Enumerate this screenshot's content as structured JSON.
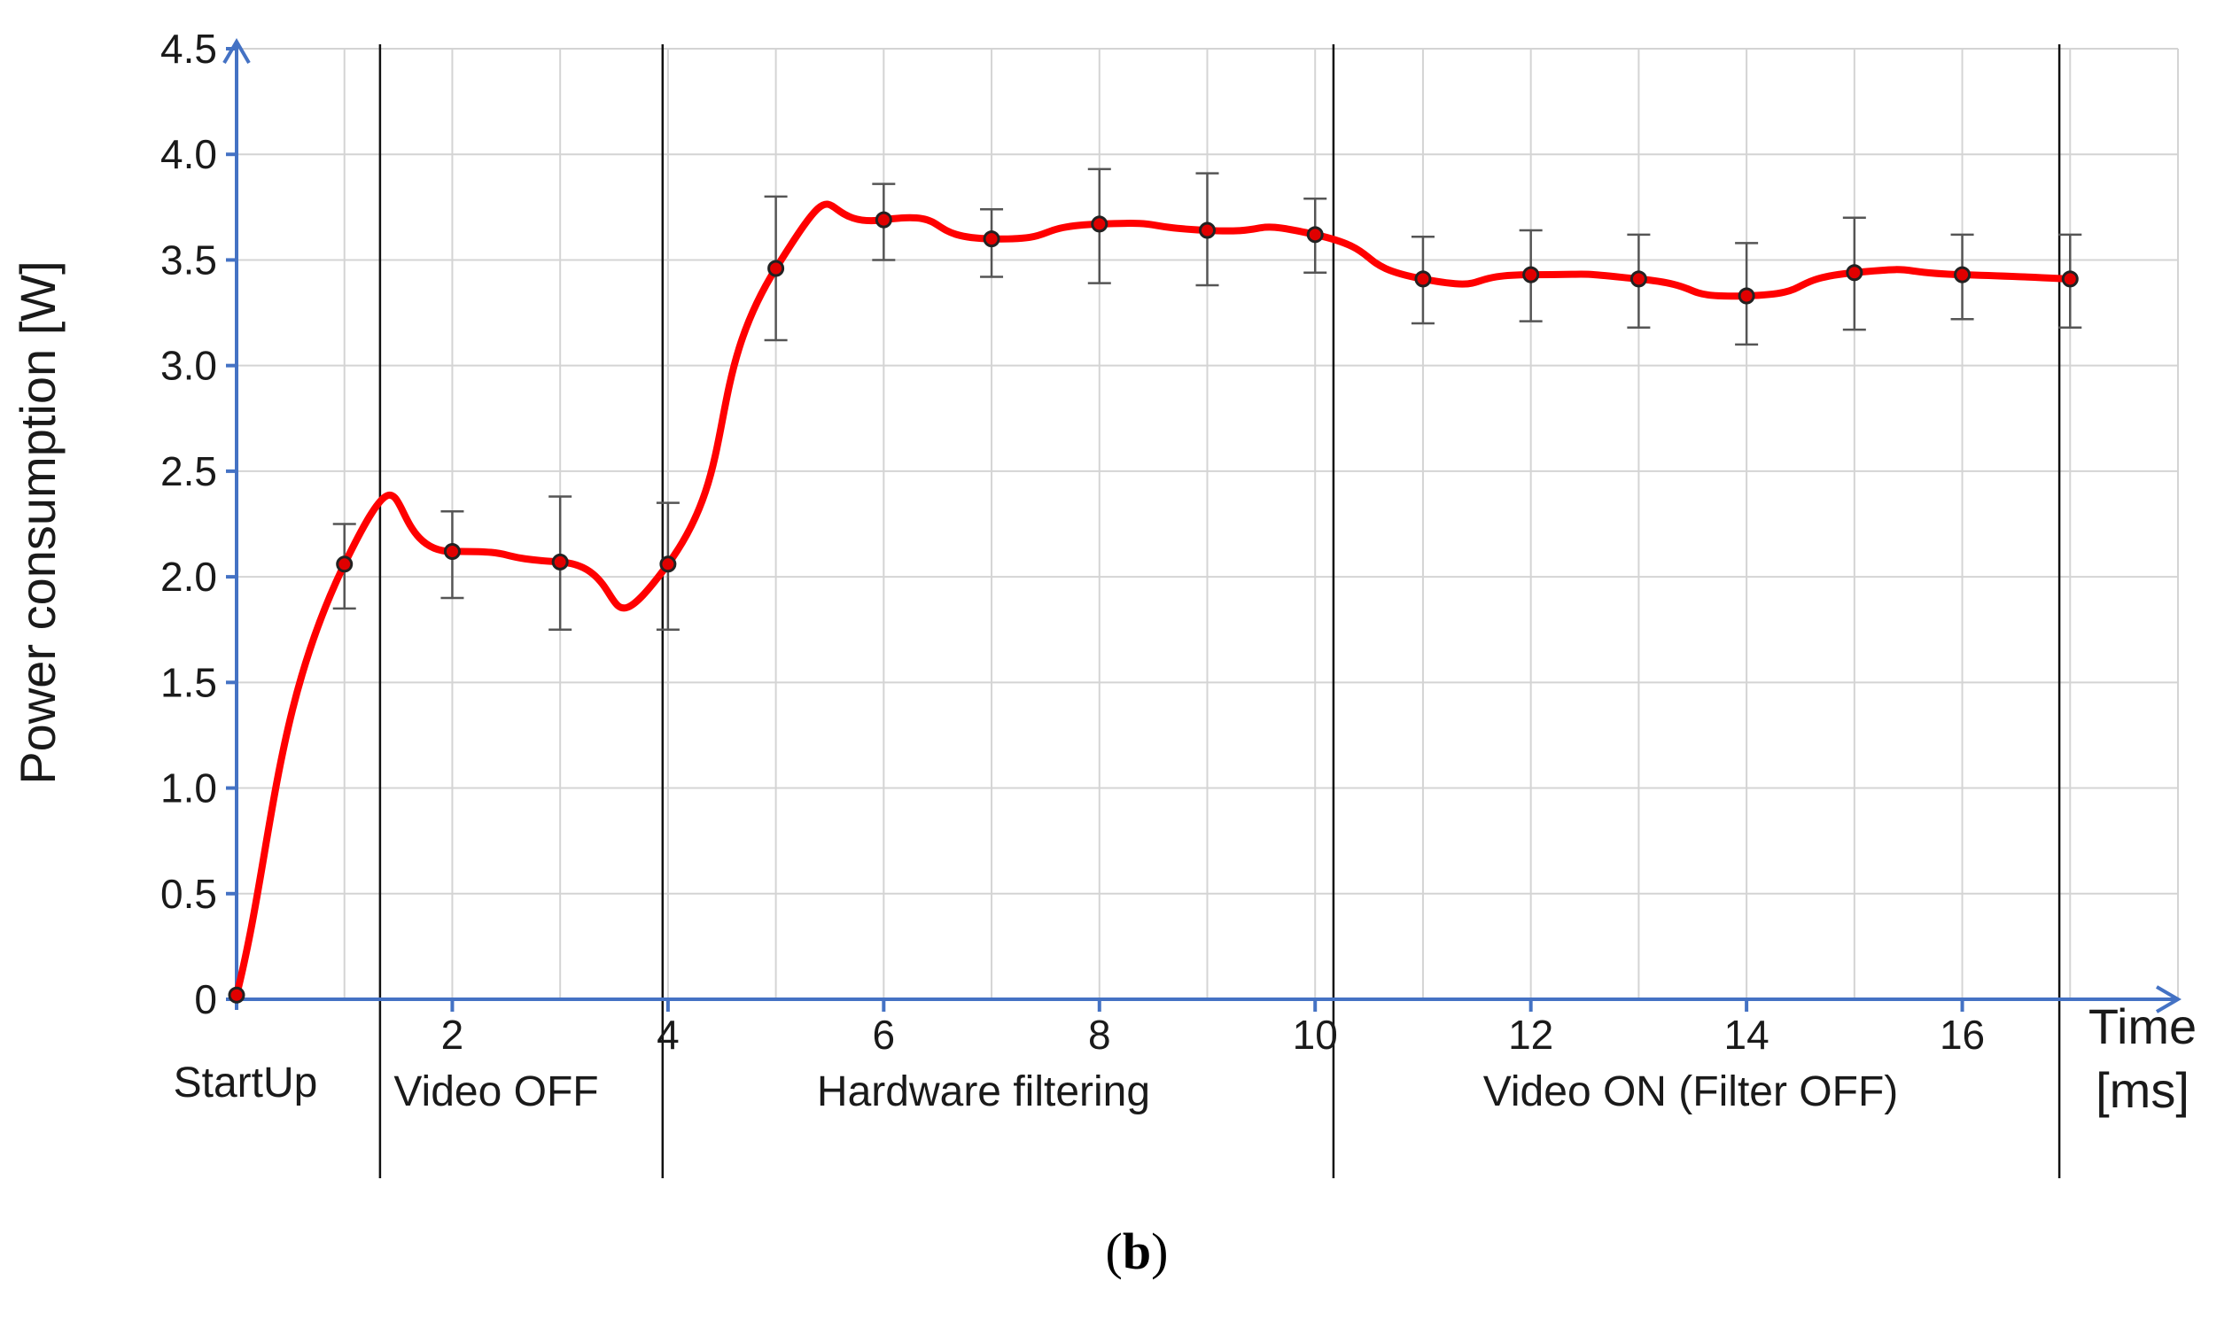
{
  "chart_data": {
    "type": "line",
    "ylabel": "Power consumption [W]",
    "xlabel_lines": [
      "Time",
      "[ms]"
    ],
    "caption": {
      "open": "(",
      "letter": "b",
      "close": ")"
    },
    "xlim": [
      0,
      18
    ],
    "ylim": [
      0,
      4.5
    ],
    "x_ticks": [
      {
        "value": 2,
        "label": "2"
      },
      {
        "value": 4,
        "label": "4"
      },
      {
        "value": 6,
        "label": "6"
      },
      {
        "value": 8,
        "label": "8"
      },
      {
        "value": 10,
        "label": "10"
      },
      {
        "value": 12,
        "label": "12"
      },
      {
        "value": 14,
        "label": "14"
      },
      {
        "value": 16,
        "label": "16"
      }
    ],
    "y_ticks": [
      {
        "value": 0,
        "label": "0"
      },
      {
        "value": 0.5,
        "label": "0.5"
      },
      {
        "value": 1.0,
        "label": "1.0"
      },
      {
        "value": 1.5,
        "label": "1.5"
      },
      {
        "value": 2.0,
        "label": "2.0"
      },
      {
        "value": 2.5,
        "label": "2.5"
      },
      {
        "value": 3.0,
        "label": "3.0"
      },
      {
        "value": 3.5,
        "label": "3.5"
      },
      {
        "value": 4.0,
        "label": "4.0"
      },
      {
        "value": 4.5,
        "label": "4.5"
      }
    ],
    "grid": true,
    "phase_boundaries": [
      1.33,
      3.95,
      10.17,
      16.9
    ],
    "phases": [
      {
        "label": "StartUp",
        "from": 0,
        "to": 1.33
      },
      {
        "label": "Video OFF",
        "from": 1.33,
        "to": 3.95
      },
      {
        "label": "Hardware filtering",
        "from": 3.95,
        "to": 10.17
      },
      {
        "label": "Video ON (Filter OFF)",
        "from": 10.17,
        "to": 16.9
      }
    ],
    "series": [
      {
        "color": "#ff0000",
        "smooth": true,
        "x": [
          0,
          1,
          2,
          3,
          4,
          5,
          6,
          7,
          8,
          9,
          10,
          11,
          12,
          13,
          14,
          15,
          16,
          17
        ],
        "y": [
          0.02,
          2.06,
          2.12,
          2.07,
          2.06,
          3.46,
          3.69,
          3.6,
          3.67,
          3.64,
          3.62,
          3.41,
          3.43,
          3.41,
          3.33,
          3.44,
          3.43,
          3.41
        ],
        "error_low": [
          null,
          1.85,
          1.9,
          1.75,
          1.75,
          3.12,
          3.5,
          3.42,
          3.39,
          3.38,
          3.44,
          3.2,
          3.21,
          3.18,
          3.1,
          3.17,
          3.22,
          3.18
        ],
        "error_high": [
          null,
          2.25,
          2.31,
          2.38,
          2.35,
          3.8,
          3.86,
          3.74,
          3.93,
          3.91,
          3.79,
          3.61,
          3.64,
          3.62,
          3.58,
          3.7,
          3.62,
          3.62
        ]
      }
    ]
  }
}
